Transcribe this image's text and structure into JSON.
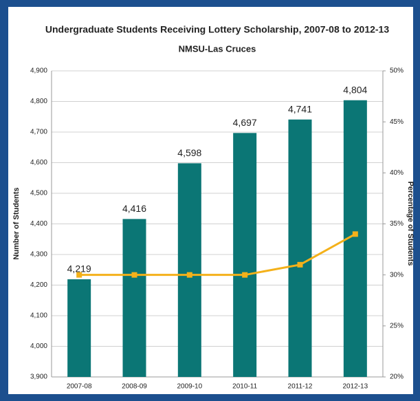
{
  "chart_data": {
    "type": "bar",
    "title": "Undergraduate Students Receiving Lottery Scholarship, 2007-08 to 2012-13",
    "subtitle": "NMSU-Las Cruces",
    "y_label": "Number of Students",
    "y2_label": "Percentage of Students",
    "categories": [
      "2007-08",
      "2008-09",
      "2009-10",
      "2010-11",
      "2011-12",
      "2012-13"
    ],
    "series": [
      {
        "type": "bar",
        "color": "#0b7675",
        "values": [
          4219,
          4416,
          4598,
          4697,
          4741,
          4804
        ],
        "value_labels": [
          "4,219",
          "4,416",
          "4,598",
          "4,697",
          "4,741",
          "4,804"
        ]
      },
      {
        "type": "line",
        "axis": "y2",
        "color": "#f4b11a",
        "values": [
          30,
          30,
          30,
          30,
          31,
          34
        ]
      }
    ],
    "ylim": [
      3900,
      4900
    ],
    "yticks": [
      {
        "value": 3900,
        "label": "3,900"
      },
      {
        "value": 4000,
        "label": "4,000"
      },
      {
        "value": 4100,
        "label": "4,100"
      },
      {
        "value": 4200,
        "label": "4,200"
      },
      {
        "value": 4300,
        "label": "4,300"
      },
      {
        "value": 4400,
        "label": "4,400"
      },
      {
        "value": 4500,
        "label": "4,500"
      },
      {
        "value": 4600,
        "label": "4,600"
      },
      {
        "value": 4700,
        "label": "4,700"
      },
      {
        "value": 4800,
        "label": "4,800"
      },
      {
        "value": 4900,
        "label": "4,900"
      }
    ],
    "y2lim": [
      20,
      50
    ],
    "y2ticks": [
      {
        "value": 20,
        "label": "20%"
      },
      {
        "value": 25,
        "label": "25%"
      },
      {
        "value": 30,
        "label": "30%"
      },
      {
        "value": 35,
        "label": "35%"
      },
      {
        "value": 40,
        "label": "40%"
      },
      {
        "value": 45,
        "label": "45%"
      },
      {
        "value": 50,
        "label": "50%"
      }
    ],
    "grid": true
  }
}
